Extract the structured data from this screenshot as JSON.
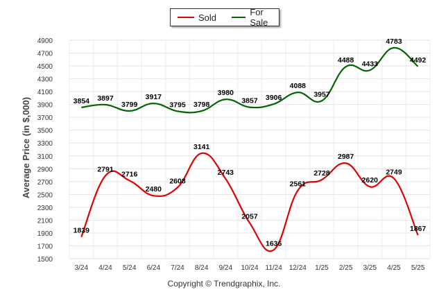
{
  "chart_data": {
    "type": "line",
    "categories": [
      "3/24",
      "4/24",
      "5/24",
      "6/24",
      "7/24",
      "8/24",
      "9/24",
      "10/24",
      "11/24",
      "12/24",
      "1/25",
      "2/25",
      "3/25",
      "4/25",
      "5/25"
    ],
    "series": [
      {
        "name": "Sold",
        "color": "#e00000",
        "values": [
          1839,
          2791,
          2716,
          2480,
          2608,
          3141,
          2743,
          2057,
          1636,
          2561,
          2728,
          2987,
          2620,
          2749,
          1867
        ]
      },
      {
        "name": "For Sale",
        "color": "#006400",
        "values": [
          3854,
          3897,
          3799,
          3917,
          3795,
          3798,
          3980,
          3857,
          3906,
          4088,
          3957,
          4488,
          4433,
          4783,
          4492
        ]
      }
    ],
    "ylabel": "Average Price (in $,000)",
    "xlabel": "",
    "ylim": [
      1500,
      4900
    ],
    "yticks": [
      1500,
      1700,
      1900,
      2100,
      2300,
      2500,
      2700,
      2900,
      3100,
      3300,
      3500,
      3700,
      3900,
      4100,
      4300,
      4500,
      4700,
      4900
    ],
    "grid": true,
    "legend_position": "top-center"
  },
  "legend": {
    "sold_label": "Sold",
    "for_sale_label": "For Sale"
  },
  "footer": {
    "copyright": "Copyright © Trendgraphix, Inc."
  }
}
